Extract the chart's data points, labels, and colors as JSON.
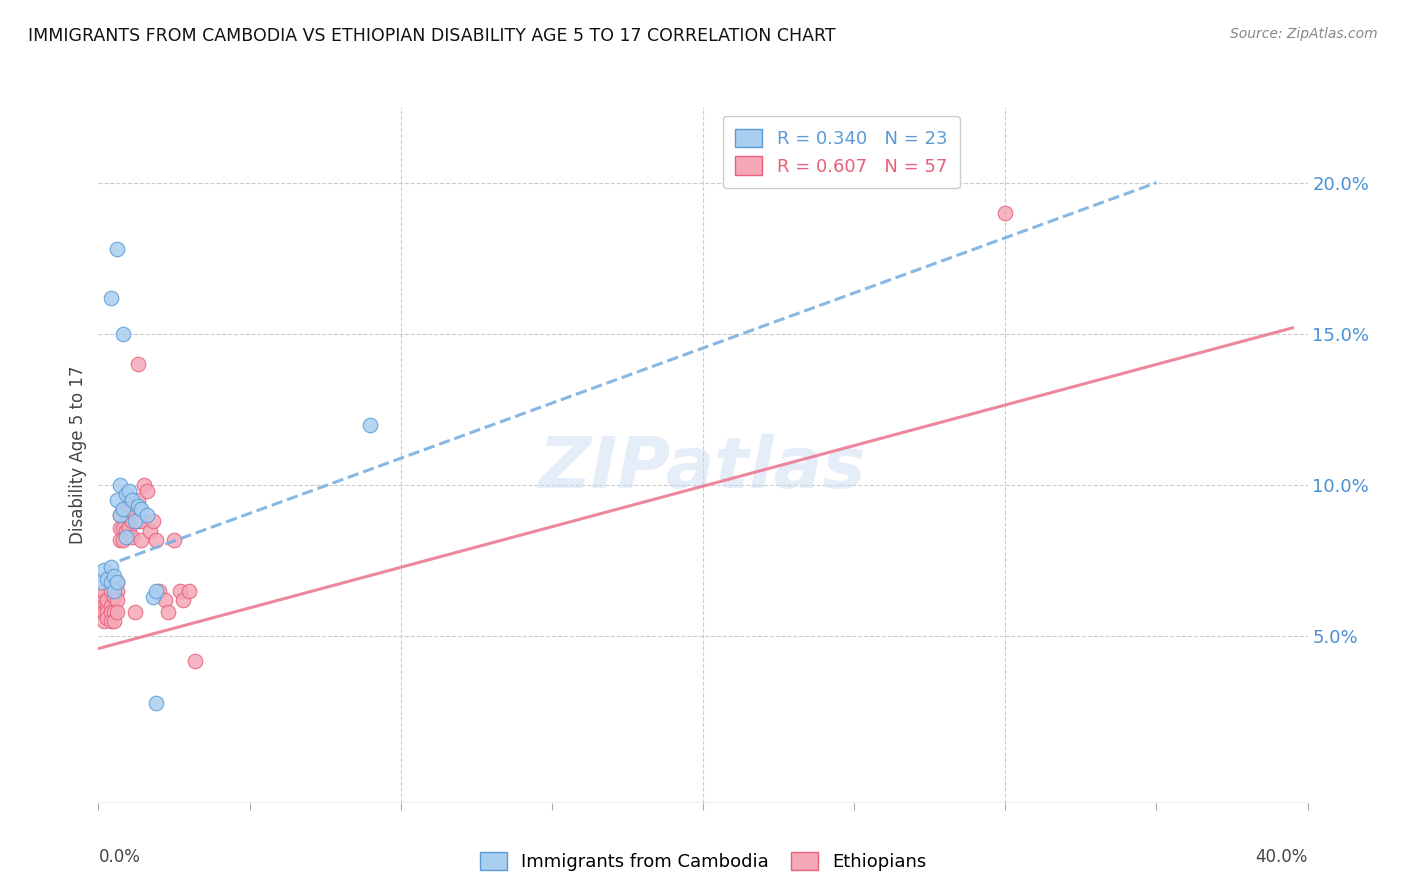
{
  "title": "IMMIGRANTS FROM CAMBODIA VS ETHIOPIAN DISABILITY AGE 5 TO 17 CORRELATION CHART",
  "source": "Source: ZipAtlas.com",
  "ylabel": "Disability Age 5 to 17",
  "right_yticks": [
    "20.0%",
    "15.0%",
    "10.0%",
    "5.0%"
  ],
  "right_ytick_vals": [
    0.2,
    0.15,
    0.1,
    0.05
  ],
  "legend_label_cambodia": "Immigrants from Cambodia",
  "legend_label_ethiopia": "Ethiopians",
  "cambodia_color": "#a8cef0",
  "ethiopia_color": "#f4a8b8",
  "cambodia_edge_color": "#5b9bd5",
  "ethiopia_edge_color": "#e8607a",
  "cambodia_line_color": "#7ab0e0",
  "ethiopia_line_color": "#eb7a92",
  "watermark": "ZIPatlas",
  "xlim": [
    0.0,
    0.4
  ],
  "ylim": [
    -0.005,
    0.225
  ],
  "cambodia_scatter": [
    [
      0.001,
      0.068
    ],
    [
      0.002,
      0.072
    ],
    [
      0.003,
      0.069
    ],
    [
      0.004,
      0.068
    ],
    [
      0.004,
      0.073
    ],
    [
      0.005,
      0.07
    ],
    [
      0.005,
      0.065
    ],
    [
      0.006,
      0.068
    ],
    [
      0.006,
      0.095
    ],
    [
      0.007,
      0.09
    ],
    [
      0.007,
      0.1
    ],
    [
      0.008,
      0.092
    ],
    [
      0.009,
      0.083
    ],
    [
      0.009,
      0.097
    ],
    [
      0.01,
      0.098
    ],
    [
      0.011,
      0.095
    ],
    [
      0.012,
      0.088
    ],
    [
      0.013,
      0.093
    ],
    [
      0.014,
      0.092
    ],
    [
      0.016,
      0.09
    ],
    [
      0.018,
      0.063
    ],
    [
      0.019,
      0.065
    ],
    [
      0.004,
      0.162
    ],
    [
      0.006,
      0.178
    ],
    [
      0.008,
      0.15
    ],
    [
      0.09,
      0.12
    ],
    [
      0.019,
      0.028
    ]
  ],
  "ethiopia_scatter": [
    [
      0.001,
      0.06
    ],
    [
      0.001,
      0.063
    ],
    [
      0.001,
      0.058
    ],
    [
      0.002,
      0.062
    ],
    [
      0.002,
      0.06
    ],
    [
      0.002,
      0.058
    ],
    [
      0.002,
      0.065
    ],
    [
      0.002,
      0.055
    ],
    [
      0.003,
      0.062
    ],
    [
      0.003,
      0.06
    ],
    [
      0.003,
      0.058
    ],
    [
      0.003,
      0.056
    ],
    [
      0.003,
      0.062
    ],
    [
      0.004,
      0.065
    ],
    [
      0.004,
      0.06
    ],
    [
      0.004,
      0.058
    ],
    [
      0.004,
      0.055
    ],
    [
      0.005,
      0.068
    ],
    [
      0.005,
      0.063
    ],
    [
      0.005,
      0.058
    ],
    [
      0.005,
      0.055
    ],
    [
      0.006,
      0.068
    ],
    [
      0.006,
      0.065
    ],
    [
      0.006,
      0.062
    ],
    [
      0.006,
      0.058
    ],
    [
      0.007,
      0.09
    ],
    [
      0.007,
      0.086
    ],
    [
      0.007,
      0.082
    ],
    [
      0.008,
      0.092
    ],
    [
      0.008,
      0.086
    ],
    [
      0.008,
      0.082
    ],
    [
      0.009,
      0.09
    ],
    [
      0.009,
      0.085
    ],
    [
      0.01,
      0.092
    ],
    [
      0.01,
      0.086
    ],
    [
      0.011,
      0.088
    ],
    [
      0.011,
      0.083
    ],
    [
      0.012,
      0.09
    ],
    [
      0.012,
      0.058
    ],
    [
      0.013,
      0.095
    ],
    [
      0.013,
      0.088
    ],
    [
      0.014,
      0.088
    ],
    [
      0.014,
      0.082
    ],
    [
      0.015,
      0.1
    ],
    [
      0.016,
      0.098
    ],
    [
      0.017,
      0.085
    ],
    [
      0.018,
      0.088
    ],
    [
      0.019,
      0.082
    ],
    [
      0.02,
      0.065
    ],
    [
      0.022,
      0.062
    ],
    [
      0.023,
      0.058
    ],
    [
      0.025,
      0.082
    ],
    [
      0.027,
      0.065
    ],
    [
      0.028,
      0.062
    ],
    [
      0.03,
      0.065
    ],
    [
      0.032,
      0.042
    ],
    [
      0.013,
      0.14
    ],
    [
      0.3,
      0.19
    ]
  ],
  "cambodia_trend_x": [
    0.007,
    0.35
  ],
  "cambodia_trend_y": [
    0.075,
    0.2
  ],
  "ethiopia_trend_x": [
    0.0,
    0.395
  ],
  "ethiopia_trend_y": [
    0.046,
    0.152
  ]
}
